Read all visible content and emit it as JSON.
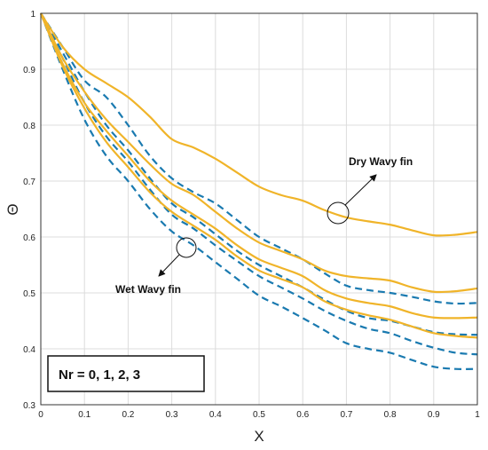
{
  "chart_data": {
    "type": "line",
    "title": "",
    "xlabel": "X",
    "ylabel": "Θ",
    "xlim": [
      0,
      1
    ],
    "ylim": [
      0.3,
      1
    ],
    "xticks": [
      "0",
      "0.1",
      "0.2",
      "0.3",
      "0.4",
      "0.5",
      "0.6",
      "0.7",
      "0.8",
      "0.9",
      "1"
    ],
    "yticks": [
      "0.3",
      "0.4",
      "0.5",
      "0.6",
      "0.7",
      "0.8",
      "0.9",
      "1"
    ],
    "grid": true,
    "legend": "none",
    "colors": {
      "dry": "#f0b429",
      "wet": "#1a7ab0"
    },
    "x": [
      0,
      0.05,
      0.1,
      0.15,
      0.2,
      0.25,
      0.3,
      0.35,
      0.4,
      0.45,
      0.5,
      0.55,
      0.6,
      0.65,
      0.7,
      0.75,
      0.8,
      0.85,
      0.9,
      0.95,
      1
    ],
    "series": [
      {
        "group": "dry",
        "style": "solid",
        "values": [
          1.0,
          0.94,
          0.9,
          0.875,
          0.85,
          0.815,
          0.775,
          0.76,
          0.74,
          0.715,
          0.69,
          0.675,
          0.665,
          0.648,
          0.635,
          0.628,
          0.622,
          0.612,
          0.603,
          0.604,
          0.609
        ]
      },
      {
        "group": "dry",
        "style": "solid",
        "values": [
          1.0,
          0.92,
          0.86,
          0.81,
          0.77,
          0.73,
          0.695,
          0.675,
          0.645,
          0.615,
          0.59,
          0.575,
          0.56,
          0.54,
          0.53,
          0.526,
          0.522,
          0.51,
          0.502,
          0.503,
          0.508
        ]
      },
      {
        "group": "dry",
        "style": "solid",
        "values": [
          1.0,
          0.91,
          0.84,
          0.79,
          0.745,
          0.7,
          0.665,
          0.64,
          0.615,
          0.585,
          0.56,
          0.545,
          0.53,
          0.505,
          0.49,
          0.482,
          0.476,
          0.464,
          0.456,
          0.455,
          0.456
        ]
      },
      {
        "group": "dry",
        "style": "solid",
        "values": [
          1.0,
          0.905,
          0.83,
          0.77,
          0.725,
          0.68,
          0.645,
          0.62,
          0.595,
          0.565,
          0.54,
          0.525,
          0.51,
          0.485,
          0.47,
          0.46,
          0.452,
          0.44,
          0.428,
          0.423,
          0.42
        ]
      },
      {
        "group": "wet",
        "style": "dashed",
        "values": [
          1.0,
          0.94,
          0.88,
          0.85,
          0.8,
          0.745,
          0.705,
          0.68,
          0.66,
          0.63,
          0.6,
          0.58,
          0.56,
          0.535,
          0.513,
          0.505,
          0.5,
          0.493,
          0.485,
          0.481,
          0.482
        ]
      },
      {
        "group": "wet",
        "style": "dashed",
        "values": [
          1.0,
          0.93,
          0.86,
          0.8,
          0.755,
          0.705,
          0.66,
          0.635,
          0.605,
          0.575,
          0.55,
          0.53,
          0.51,
          0.488,
          0.468,
          0.455,
          0.45,
          0.44,
          0.43,
          0.426,
          0.425
        ]
      },
      {
        "group": "wet",
        "style": "dashed",
        "values": [
          1.0,
          0.92,
          0.84,
          0.78,
          0.735,
          0.685,
          0.64,
          0.615,
          0.585,
          0.557,
          0.53,
          0.51,
          0.49,
          0.468,
          0.45,
          0.436,
          0.428,
          0.414,
          0.402,
          0.393,
          0.39
        ]
      },
      {
        "group": "wet",
        "style": "dashed",
        "values": [
          1.0,
          0.9,
          0.81,
          0.745,
          0.7,
          0.65,
          0.61,
          0.585,
          0.555,
          0.525,
          0.495,
          0.476,
          0.455,
          0.433,
          0.41,
          0.4,
          0.393,
          0.38,
          0.368,
          0.364,
          0.364
        ]
      }
    ],
    "annotations": [
      {
        "text": "Dry Wavy fin",
        "target": [
          0.68,
          0.64
        ]
      },
      {
        "text": "Wet Wavy fin",
        "target": [
          0.33,
          0.585
        ]
      }
    ],
    "textbox": "Nr = 0, 1, 2, 3"
  }
}
